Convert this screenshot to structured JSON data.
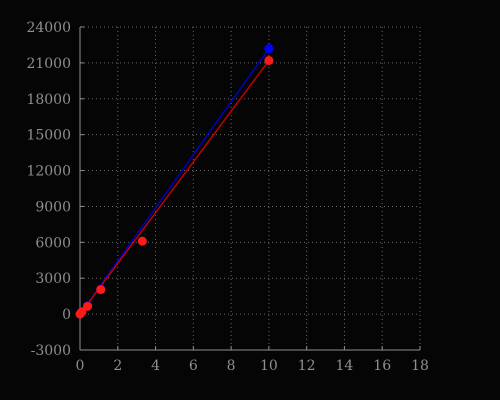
{
  "chart_data": {
    "type": "scatter",
    "title": "",
    "xlabel": "",
    "ylabel": "",
    "xlim": [
      0,
      18
    ],
    "ylim": [
      -3000,
      24000
    ],
    "x_ticks": [
      0,
      2,
      4,
      6,
      8,
      10,
      12,
      14,
      16,
      18
    ],
    "y_ticks": [
      -3000,
      0,
      3000,
      6000,
      9000,
      12000,
      15000,
      18000,
      21000,
      24000
    ],
    "x_tick_labels": [
      "0",
      "2",
      "4",
      "6",
      "8",
      "10",
      "12",
      "14",
      "16",
      "18"
    ],
    "y_tick_labels": [
      "-3000",
      "0",
      "3000",
      "6000",
      "9000",
      "12000",
      "15000",
      "18000",
      "21000",
      "24000"
    ],
    "grid": true,
    "series": [
      {
        "color": "#0000ff",
        "points": [
          {
            "x": 0.0,
            "y": 0
          },
          {
            "x": 0.1,
            "y": 210
          },
          {
            "x": 0.4,
            "y": 700
          },
          {
            "x": 1.1,
            "y": 2100
          },
          {
            "x": 10.0,
            "y": 22200
          }
        ]
      },
      {
        "color": "#ff1a1a",
        "points": [
          {
            "x": 0.0,
            "y": 0
          },
          {
            "x": 0.1,
            "y": 200
          },
          {
            "x": 0.4,
            "y": 650
          },
          {
            "x": 1.1,
            "y": 2050
          },
          {
            "x": 3.3,
            "y": 6100
          },
          {
            "x": 10.0,
            "y": 21200
          }
        ]
      }
    ],
    "fit_lines": [
      {
        "color": "#0000cc",
        "from": {
          "x": 0,
          "y": 0
        },
        "to": {
          "x": 10,
          "y": 22200
        }
      },
      {
        "color": "#cc0000",
        "from": {
          "x": 0,
          "y": 0
        },
        "to": {
          "x": 10,
          "y": 21200
        }
      }
    ]
  }
}
